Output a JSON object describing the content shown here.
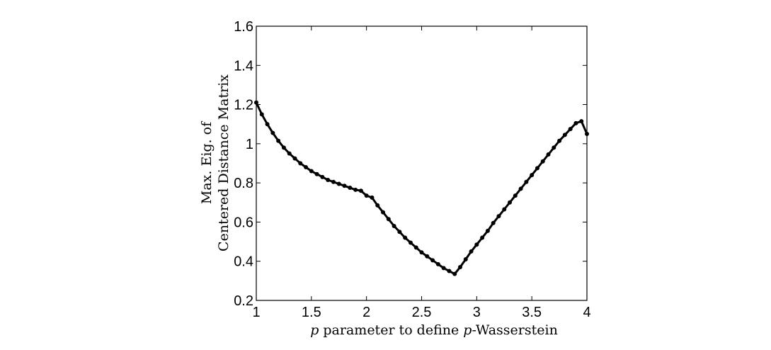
{
  "chart_data": {
    "type": "line",
    "title": "",
    "xlabel": "p parameter to define p-Wasserstein",
    "ylabel_lines": [
      "Max. Eig. of",
      "Centered Distance Matrix"
    ],
    "xlim": [
      1,
      4
    ],
    "ylim": [
      0.2,
      1.6
    ],
    "xticks": [
      1,
      1.5,
      2,
      2.5,
      3,
      3.5,
      4
    ],
    "xtick_labels": [
      "1",
      "1.5",
      "2",
      "2.5",
      "3",
      "3.5",
      "4"
    ],
    "yticks": [
      0.2,
      0.4,
      0.6,
      0.8,
      1.0,
      1.2,
      1.4,
      1.6
    ],
    "ytick_labels": [
      "0.2",
      "0.4",
      "0.6",
      "0.8",
      "1",
      "1.2",
      "1.4",
      "1.6"
    ],
    "grid": false,
    "legend": "none",
    "series": [
      {
        "color": "#000000",
        "marker": "dot",
        "x": [
          1.0,
          1.05,
          1.1,
          1.15,
          1.2,
          1.25,
          1.3,
          1.35,
          1.4,
          1.45,
          1.5,
          1.55,
          1.6,
          1.65,
          1.7,
          1.75,
          1.8,
          1.85,
          1.9,
          1.95,
          2.0,
          2.05,
          2.1,
          2.15,
          2.2,
          2.25,
          2.3,
          2.35,
          2.4,
          2.45,
          2.5,
          2.55,
          2.6,
          2.65,
          2.7,
          2.75,
          2.8,
          2.85,
          2.9,
          2.95,
          3.0,
          3.05,
          3.1,
          3.15,
          3.2,
          3.25,
          3.3,
          3.35,
          3.4,
          3.45,
          3.5,
          3.55,
          3.6,
          3.65,
          3.7,
          3.75,
          3.8,
          3.85,
          3.9,
          3.95,
          4.0
        ],
        "y": [
          1.21,
          1.15,
          1.1,
          1.055,
          1.015,
          0.98,
          0.95,
          0.925,
          0.9,
          0.88,
          0.86,
          0.845,
          0.83,
          0.815,
          0.805,
          0.795,
          0.785,
          0.775,
          0.765,
          0.76,
          0.735,
          0.725,
          0.685,
          0.65,
          0.615,
          0.58,
          0.55,
          0.52,
          0.495,
          0.47,
          0.445,
          0.425,
          0.405,
          0.385,
          0.365,
          0.35,
          0.335,
          0.37,
          0.41,
          0.45,
          0.485,
          0.52,
          0.555,
          0.595,
          0.63,
          0.665,
          0.7,
          0.735,
          0.77,
          0.805,
          0.84,
          0.875,
          0.91,
          0.945,
          0.98,
          1.015,
          1.045,
          1.075,
          1.105,
          1.115,
          1.05
        ]
      }
    ]
  }
}
